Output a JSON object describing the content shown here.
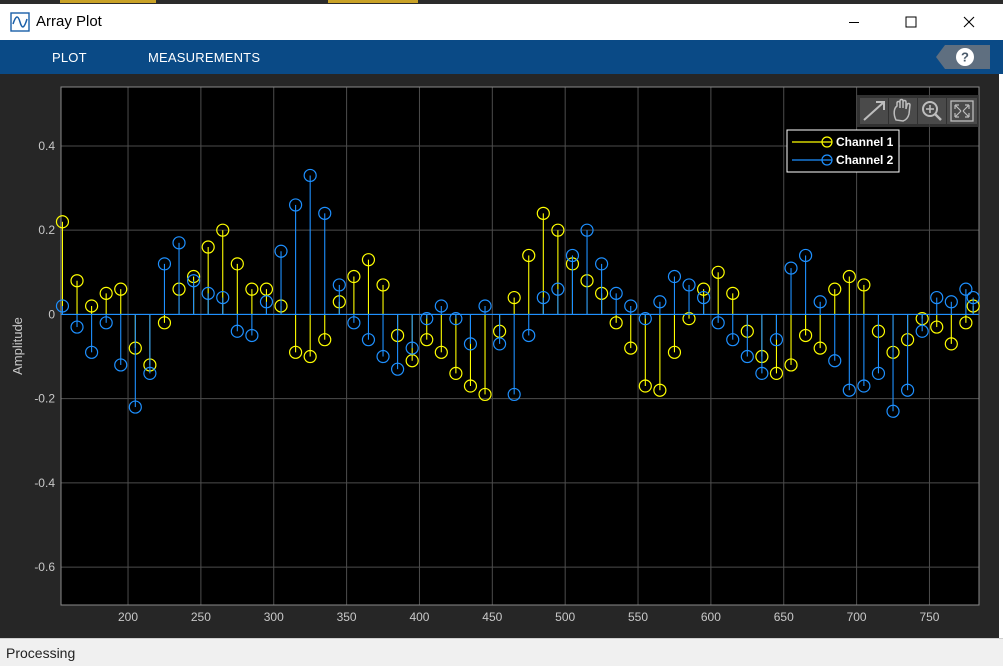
{
  "window": {
    "title": "Array Plot",
    "controls": {
      "minimize": "minimize-icon",
      "maximize": "maximize-icon",
      "close": "close-icon"
    }
  },
  "toolstrip": {
    "tabs": [
      {
        "label": "PLOT"
      },
      {
        "label": "MEASUREMENTS"
      }
    ],
    "help_label": "?"
  },
  "status": {
    "text": "Processing"
  },
  "colors": {
    "channel1": "#ffff00",
    "channel2": "#1e90ff",
    "axes_bg": "#000000",
    "figure_bg": "#262626",
    "grid": "#4d4d4d",
    "toolstrip": "#0a4a86"
  },
  "chart_data": {
    "type": "stem",
    "title": "",
    "xlabel": "",
    "ylabel": "Amplitude",
    "xlim": [
      154,
      784
    ],
    "ylim": [
      -0.69,
      0.54
    ],
    "xticks": [
      200,
      250,
      300,
      350,
      400,
      450,
      500,
      550,
      600,
      650,
      700,
      750
    ],
    "yticks": [
      0.4,
      0.2,
      0,
      -0.2,
      -0.4,
      -0.6
    ],
    "ytick_labels": [
      "0.4",
      "0.2",
      "0",
      "-0.2",
      "-0.4",
      "-0.6"
    ],
    "grid": true,
    "legend": {
      "position": "top-right"
    },
    "series": [
      {
        "name": "Channel 1",
        "color": "#ffff00",
        "marker": "circle",
        "x_step": 10,
        "x": [
          155,
          165,
          175,
          185,
          195,
          205,
          215,
          225,
          235,
          245,
          255,
          265,
          275,
          285,
          295,
          305,
          315,
          325,
          335,
          345,
          355,
          365,
          375,
          385,
          395,
          405,
          415,
          425,
          435,
          445,
          455,
          465,
          475,
          485,
          495,
          505,
          515,
          525,
          535,
          545,
          555,
          565,
          575,
          585,
          595,
          605,
          615,
          625,
          635,
          645,
          655,
          665,
          675,
          685,
          695,
          705,
          715,
          725,
          735,
          745,
          755,
          765,
          775,
          780
        ],
        "y": [
          0.22,
          0.08,
          0.02,
          0.05,
          0.06,
          -0.08,
          -0.12,
          -0.02,
          0.06,
          0.09,
          0.16,
          0.2,
          0.12,
          0.06,
          0.06,
          0.02,
          -0.09,
          -0.1,
          -0.06,
          0.03,
          0.09,
          0.13,
          0.07,
          -0.05,
          -0.11,
          -0.06,
          -0.09,
          -0.14,
          -0.17,
          -0.19,
          -0.04,
          0.04,
          0.14,
          0.24,
          0.2,
          0.12,
          0.08,
          0.05,
          -0.02,
          -0.08,
          -0.17,
          -0.18,
          -0.09,
          -0.01,
          0.06,
          0.1,
          0.05,
          -0.04,
          -0.1,
          -0.14,
          -0.12,
          -0.05,
          -0.08,
          0.06,
          0.09,
          0.07,
          -0.04,
          -0.09,
          -0.06,
          -0.01,
          -0.03,
          -0.07,
          -0.02,
          0.02
        ]
      },
      {
        "name": "Channel 2",
        "color": "#1e90ff",
        "marker": "circle",
        "x_step": 10,
        "x": [
          155,
          165,
          175,
          185,
          195,
          205,
          215,
          225,
          235,
          245,
          255,
          265,
          275,
          285,
          295,
          305,
          315,
          325,
          335,
          345,
          355,
          365,
          375,
          385,
          395,
          405,
          415,
          425,
          435,
          445,
          455,
          465,
          475,
          485,
          495,
          505,
          515,
          525,
          535,
          545,
          555,
          565,
          575,
          585,
          595,
          605,
          615,
          625,
          635,
          645,
          655,
          665,
          675,
          685,
          695,
          705,
          715,
          725,
          735,
          745,
          755,
          765,
          775,
          780
        ],
        "y": [
          0.02,
          -0.03,
          -0.09,
          -0.02,
          -0.12,
          -0.22,
          -0.14,
          0.12,
          0.17,
          0.08,
          0.05,
          0.04,
          -0.04,
          -0.05,
          0.03,
          0.15,
          0.26,
          0.33,
          0.24,
          0.07,
          -0.02,
          -0.06,
          -0.1,
          -0.13,
          -0.08,
          -0.01,
          0.02,
          -0.01,
          -0.07,
          0.02,
          -0.07,
          -0.19,
          -0.05,
          0.04,
          0.06,
          0.14,
          0.2,
          0.12,
          0.05,
          0.02,
          -0.01,
          0.03,
          0.09,
          0.07,
          0.04,
          -0.02,
          -0.06,
          -0.1,
          -0.14,
          -0.06,
          0.11,
          0.14,
          0.03,
          -0.11,
          -0.18,
          -0.17,
          -0.14,
          -0.23,
          -0.18,
          -0.04,
          0.04,
          0.03,
          0.06,
          0.04
        ]
      }
    ]
  }
}
